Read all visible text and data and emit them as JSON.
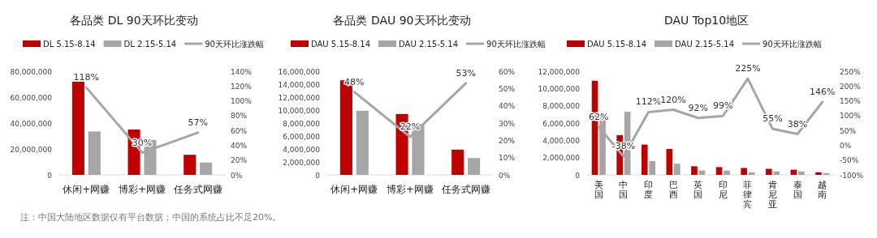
{
  "chart_data": [
    {
      "type": "bar",
      "title": "各品类 DL 90天环比变动",
      "categories": [
        "休闲+网赚",
        "博彩+网赚",
        "任务式网赚"
      ],
      "legend": "top",
      "ylim": [
        0,
        80000000
      ],
      "yticks": [
        {
          "value": 0,
          "label": "0"
        },
        {
          "value": 20000000,
          "label": "20,000,000"
        },
        {
          "value": 40000000,
          "label": "40,000,000"
        },
        {
          "value": 60000000,
          "label": "60,000,000"
        },
        {
          "value": 80000000,
          "label": "80,000,000"
        }
      ],
      "y2lim": [
        0,
        140
      ],
      "y2ticks": [
        {
          "value": 0,
          "label": "0%"
        },
        {
          "value": 20,
          "label": "20%"
        },
        {
          "value": 40,
          "label": "40%"
        },
        {
          "value": 60,
          "label": "60%"
        },
        {
          "value": 80,
          "label": "80%"
        },
        {
          "value": 100,
          "label": "100%"
        },
        {
          "value": 120,
          "label": "120%"
        },
        {
          "value": 140,
          "label": "140%"
        }
      ],
      "series": [
        {
          "name": "DL 5.15-8.14",
          "color": "#c00000",
          "values": [
            72000000,
            35000000,
            15500000
          ]
        },
        {
          "name": "DL 2.15-5.14",
          "color": "#a6a6a6",
          "values": [
            33500000,
            27000000,
            9500000
          ]
        },
        {
          "name": "90天环比涨跌幅",
          "type": "line",
          "axis": "y2",
          "color": "#a6a6a6",
          "values": [
            118,
            30,
            57
          ],
          "value_labels": [
            "118%",
            "30%",
            "57%"
          ]
        }
      ],
      "annotations": [
        "注：中国大陆地区数据仅有平台数据；中国的系统占比不足20%。"
      ]
    },
    {
      "type": "bar",
      "title": "各品类 DAU 90天环比变动",
      "categories": [
        "休闲+网赚",
        "博彩+网赚",
        "任务式网赚"
      ],
      "legend": "top",
      "ylim": [
        0,
        16000000
      ],
      "yticks": [
        {
          "value": 0,
          "label": "0"
        },
        {
          "value": 2000000,
          "label": "2,000,000"
        },
        {
          "value": 4000000,
          "label": "4,000,000"
        },
        {
          "value": 6000000,
          "label": "6,000,000"
        },
        {
          "value": 8000000,
          "label": "8,000,000"
        },
        {
          "value": 10000000,
          "label": "10,000,000"
        },
        {
          "value": 12000000,
          "label": "12,000,000"
        },
        {
          "value": 14000000,
          "label": "14,000,000"
        },
        {
          "value": 16000000,
          "label": "16,000,000"
        }
      ],
      "y2lim": [
        0,
        60
      ],
      "y2ticks": [
        {
          "value": 0,
          "label": "0%"
        },
        {
          "value": 10,
          "label": "10%"
        },
        {
          "value": 20,
          "label": "20%"
        },
        {
          "value": 30,
          "label": "30%"
        },
        {
          "value": 40,
          "label": "40%"
        },
        {
          "value": 50,
          "label": "50%"
        },
        {
          "value": 60,
          "label": "60%"
        }
      ],
      "series": [
        {
          "name": "DAU 5.15-8.14",
          "color": "#c00000",
          "values": [
            14600000,
            9400000,
            3900000
          ]
        },
        {
          "name": "DAU 2.15-5.14",
          "color": "#a6a6a6",
          "values": [
            9900000,
            7800000,
            2600000
          ]
        },
        {
          "name": "90天环比涨跌幅",
          "type": "line",
          "axis": "y2",
          "color": "#a6a6a6",
          "values": [
            48,
            22,
            53
          ],
          "value_labels": [
            "48%",
            "22%",
            "53%"
          ]
        }
      ]
    },
    {
      "type": "bar",
      "title": "DAU Top10地区",
      "categories": [
        "美国",
        "中国",
        "印度",
        "巴西",
        "英国",
        "印尼",
        "菲律宾",
        "肯尼亚",
        "泰国",
        "越南"
      ],
      "legend": "top",
      "ylim": [
        0,
        12000000
      ],
      "yticks": [
        {
          "value": 0,
          "label": "0"
        },
        {
          "value": 2000000,
          "label": "2,000,000"
        },
        {
          "value": 4000000,
          "label": "4,000,000"
        },
        {
          "value": 6000000,
          "label": "6,000,000"
        },
        {
          "value": 8000000,
          "label": "8,000,000"
        },
        {
          "value": 10000000,
          "label": "10,000,000"
        },
        {
          "value": 12000000,
          "label": "12,000,000"
        }
      ],
      "y2lim": [
        -100,
        250
      ],
      "y2ticks": [
        {
          "value": -100,
          "label": "-100%"
        },
        {
          "value": -50,
          "label": "-50%"
        },
        {
          "value": 0,
          "label": "0%"
        },
        {
          "value": 50,
          "label": "50%"
        },
        {
          "value": 100,
          "label": "100%"
        },
        {
          "value": 150,
          "label": "150%"
        },
        {
          "value": 200,
          "label": "200%"
        },
        {
          "value": 250,
          "label": "250%"
        }
      ],
      "series": [
        {
          "name": "DAU 5.15-8.14",
          "color": "#c00000",
          "values": [
            10900000,
            4600000,
            3500000,
            3000000,
            1000000,
            900000,
            800000,
            700000,
            600000,
            300000
          ]
        },
        {
          "name": "DAU 2.15-5.14",
          "color": "#a6a6a6",
          "values": [
            6800000,
            7300000,
            1600000,
            1300000,
            500000,
            500000,
            300000,
            400000,
            400000,
            200000
          ]
        },
        {
          "name": "90天环比涨跌幅",
          "type": "line",
          "axis": "y2",
          "color": "#a6a6a6",
          "values": [
            62,
            -38,
            112,
            120,
            92,
            99,
            225,
            55,
            38,
            146
          ],
          "value_labels": [
            "62%",
            "-38%",
            "112%",
            "120%",
            "92%",
            "99%",
            "225%",
            "55%",
            "38%",
            "146%"
          ]
        }
      ]
    }
  ]
}
